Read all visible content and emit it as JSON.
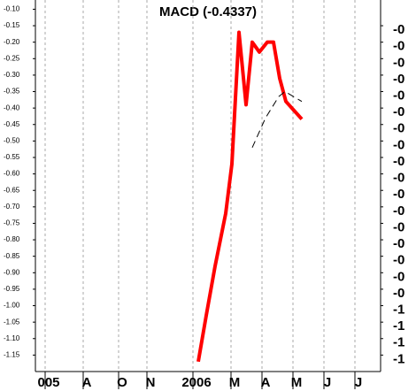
{
  "chart_data": {
    "type": "line",
    "title": "MACD (-0.4337)",
    "xlim": [
      0,
      39
    ],
    "xticks": [
      {
        "value": 1.5,
        "label": "005"
      },
      {
        "value": 5.8,
        "label": "A"
      },
      {
        "value": 9.8,
        "label": "O"
      },
      {
        "value": 13,
        "label": "N"
      },
      {
        "value": 18.2,
        "label": "2006"
      },
      {
        "value": 22.5,
        "label": "M"
      },
      {
        "value": 26,
        "label": "A"
      },
      {
        "value": 29.5,
        "label": "M"
      },
      {
        "value": 33,
        "label": "J"
      },
      {
        "value": 36.5,
        "label": "J"
      }
    ],
    "ylim": [
      -1.2,
      -0.08
    ],
    "yticks": [
      {
        "value": -0.1,
        "label": "-0.10"
      },
      -0.15,
      {
        "value": -0.2,
        "label": "-0.20"
      },
      -0.25,
      {
        "value": -0.3,
        "label": "-0.30"
      },
      -0.35,
      {
        "value": -0.4,
        "label": "-0.40"
      },
      -0.45,
      {
        "value": -0.5,
        "label": "-0.50"
      },
      -0.55,
      {
        "value": -0.6,
        "label": "-0.60"
      },
      -0.65,
      {
        "value": -0.7,
        "label": "-0.70"
      },
      -0.75,
      {
        "value": -0.8,
        "label": "-0.80"
      },
      -0.85,
      {
        "value": -0.9,
        "label": "-0.90"
      },
      -0.95,
      {
        "value": -1.0,
        "label": "-1.00"
      },
      -1.05,
      {
        "value": -1.1,
        "label": "-1.10"
      },
      -1.15
    ],
    "y2lim": [
      -1.2,
      -0.08
    ],
    "y2ticks": [
      {
        "value": -0.15,
        "label": "-0"
      },
      {
        "value": -0.2,
        "label": "-0"
      },
      {
        "value": -0.25,
        "label": "-0"
      },
      {
        "value": -0.3,
        "label": "-0"
      },
      {
        "value": -0.35,
        "label": "-0"
      },
      {
        "value": -0.4,
        "label": "-0"
      },
      {
        "value": -0.45,
        "label": "-0"
      },
      {
        "value": -0.5,
        "label": "-0"
      },
      {
        "value": -0.55,
        "label": "-0"
      },
      {
        "value": -0.6,
        "label": "-0"
      },
      {
        "value": -0.65,
        "label": "-0"
      },
      {
        "value": -0.7,
        "label": "-0"
      },
      {
        "value": -0.75,
        "label": "-0"
      },
      {
        "value": -0.8,
        "label": "-0"
      },
      {
        "value": -0.85,
        "label": "-0"
      },
      {
        "value": -0.9,
        "label": "-0"
      },
      {
        "value": -0.95,
        "label": "-0"
      },
      {
        "value": -1.0,
        "label": "-1"
      },
      {
        "value": -1.05,
        "label": "-1"
      },
      {
        "value": -1.1,
        "label": "-1"
      },
      {
        "value": -1.15,
        "label": "-1"
      }
    ],
    "grid": true,
    "series": [
      {
        "color": "#ff0000",
        "dash": false,
        "x": [
          18.4,
          19.3,
          20.3,
          21.5,
          22.2,
          23.0,
          23.8,
          24.5,
          25.3,
          26.2,
          26.9,
          27.6,
          28.3,
          30.1
        ],
        "values": [
          -1.17,
          -1.03,
          -0.88,
          -0.72,
          -0.57,
          -0.17,
          -0.39,
          -0.2,
          -0.23,
          -0.2,
          -0.2,
          -0.31,
          -0.38,
          -0.4337
        ]
      },
      {
        "color": "#000000",
        "dash": true,
        "x": [
          24.5,
          26.0,
          27.5,
          28.2,
          30.1
        ],
        "values": [
          -0.52,
          -0.43,
          -0.365,
          -0.35,
          -0.38
        ]
      }
    ]
  }
}
